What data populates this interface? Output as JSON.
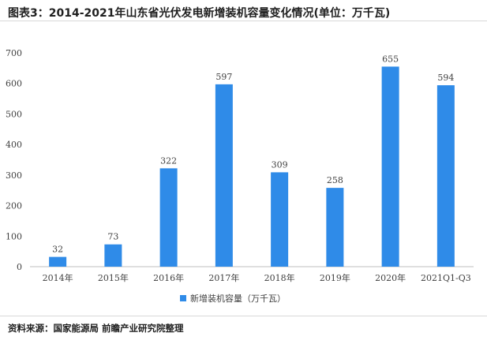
{
  "header": {
    "title": "图表3：2014-2021年山东省光伏发电新增装机容量变化情况(单位：万千瓦)"
  },
  "footer": {
    "source": "资料来源：国家能源局 前瞻产业研究院整理"
  },
  "colors": {
    "bar": "#2f8be8",
    "axis": "#bfbfbf",
    "text": "#404040"
  },
  "chart_data": {
    "type": "bar",
    "categories": [
      "2014年",
      "2015年",
      "2016年",
      "2017年",
      "2018年",
      "2019年",
      "2020年",
      "2021Q1-Q3"
    ],
    "series": [
      {
        "name": "新增装机容量（万千瓦）",
        "values": [
          32,
          73,
          322,
          597,
          309,
          258,
          655,
          594
        ]
      }
    ],
    "ylim": [
      0,
      700
    ],
    "yticks": [
      0,
      100,
      200,
      300,
      400,
      500,
      600,
      700
    ],
    "grid": false,
    "legend": "bottom",
    "xlabel": "",
    "ylabel": ""
  }
}
